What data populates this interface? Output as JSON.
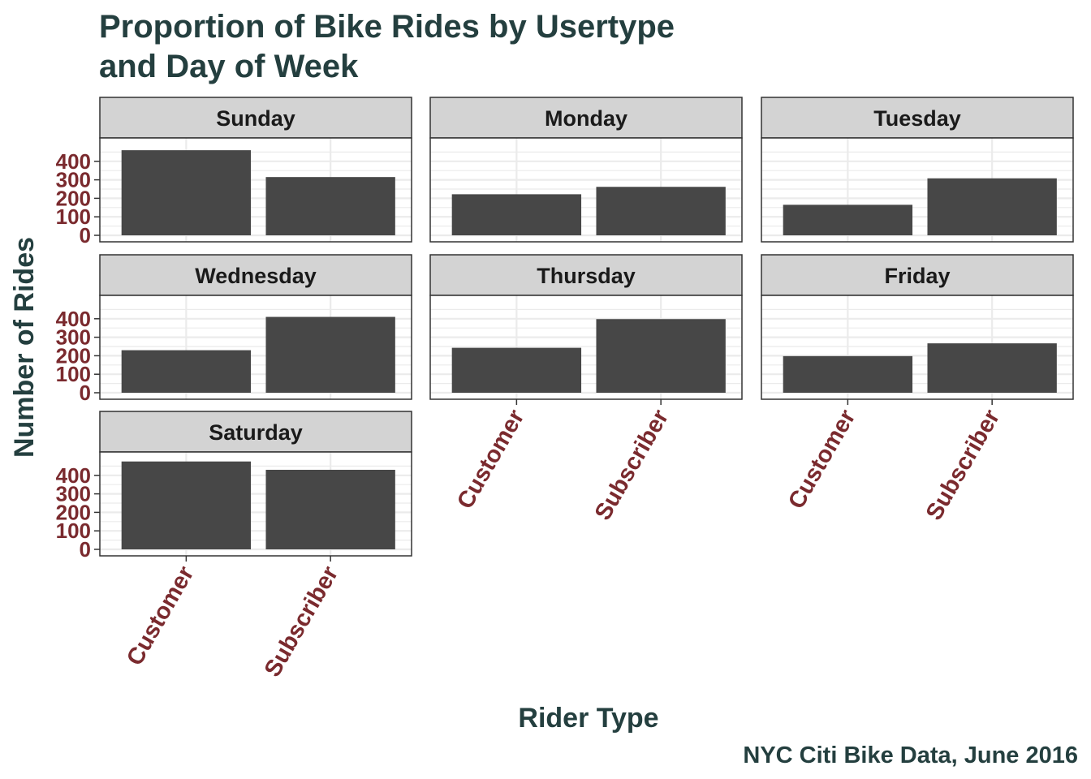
{
  "chart_data": {
    "type": "bar",
    "title": "Proportion of Bike Rides by Usertype and Day of Week",
    "title_lines": [
      "Proportion of Bike Rides by Usertype",
      "and Day of Week"
    ],
    "xlabel": "Rider Type",
    "ylabel": "Number of Rides",
    "caption": "NYC Citi Bike Data, June 2016",
    "categories": [
      "Customer",
      "Subscriber"
    ],
    "y_ticks": [
      "0",
      "100",
      "200",
      "300",
      "400"
    ],
    "ylim": [
      0,
      500
    ],
    "grid": true,
    "facets": [
      {
        "name": "Sunday",
        "values": [
          460,
          315
        ]
      },
      {
        "name": "Monday",
        "values": [
          222,
          262
        ]
      },
      {
        "name": "Tuesday",
        "values": [
          165,
          308
        ]
      },
      {
        "name": "Wednesday",
        "values": [
          230,
          410
        ]
      },
      {
        "name": "Thursday",
        "values": [
          243,
          398
        ]
      },
      {
        "name": "Friday",
        "values": [
          198,
          267
        ]
      },
      {
        "name": "Saturday",
        "values": [
          475,
          430
        ]
      }
    ]
  },
  "colors": {
    "title": "#243f3f",
    "tick_text": "#7a2a2e",
    "bar": "#474747",
    "strip_fill": "#d3d3d3",
    "grid": "#ebebeb",
    "border": "#333333"
  }
}
